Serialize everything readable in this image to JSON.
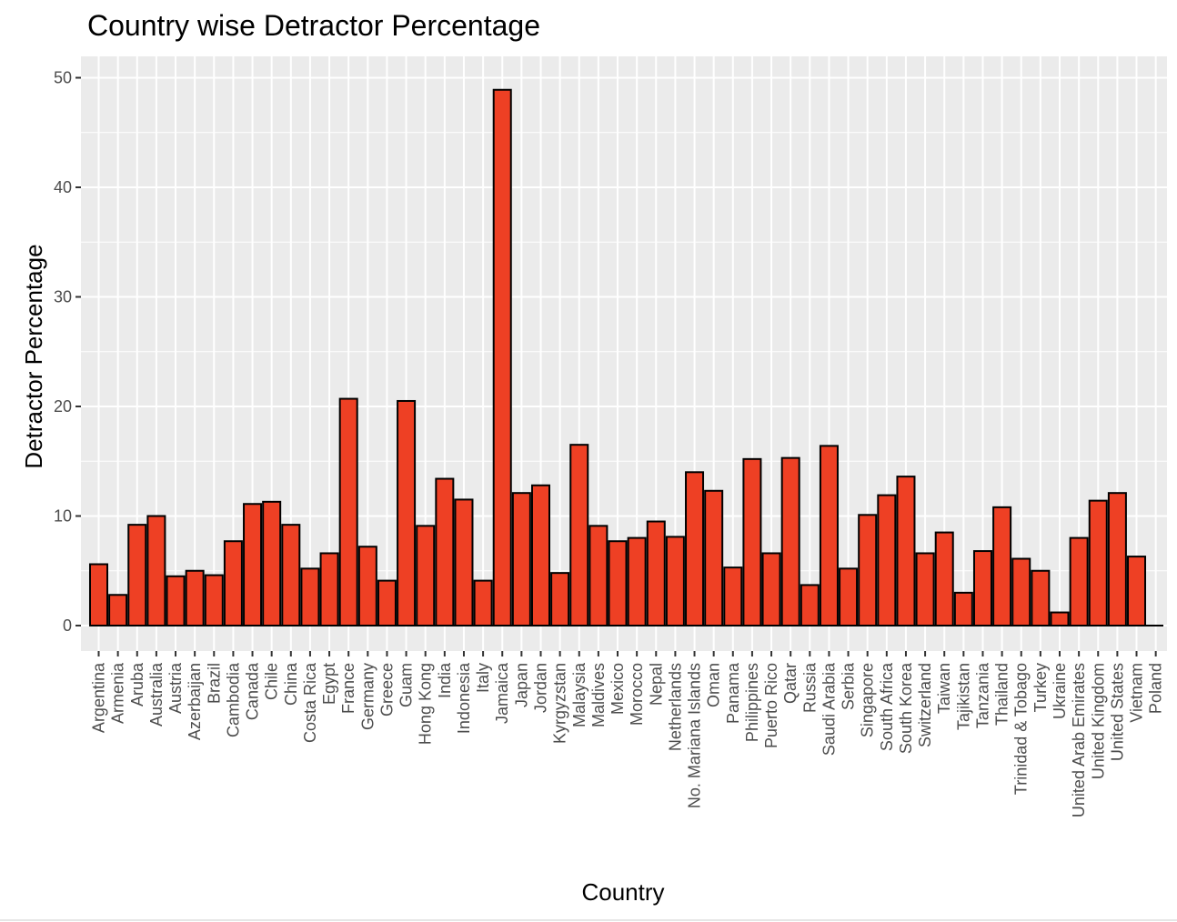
{
  "chart_data": {
    "type": "bar",
    "title": "Country wise Detractor Percentage",
    "xlabel": "Country",
    "ylabel": "Detractor Percentage",
    "ylim": [
      0,
      52
    ],
    "yticks": [
      0,
      10,
      20,
      30,
      40,
      50
    ],
    "grid": true,
    "colors": {
      "bar_fill": "#ee4024",
      "bar_stroke": "#000000",
      "panel": "#ebebeb",
      "grid": "#ffffff"
    },
    "categories": [
      "Argentina",
      "Armenia",
      "Aruba",
      "Australia",
      "Austria",
      "Azerbaijan",
      "Brazil",
      "Cambodia",
      "Canada",
      "Chile",
      "China",
      "Costa Rica",
      "Egypt",
      "France",
      "Germany",
      "Greece",
      "Guam",
      "Hong Kong",
      "India",
      "Indonesia",
      "Italy",
      "Jamaica",
      "Japan",
      "Jordan",
      "Kyrgyzstan",
      "Malaysia",
      "Maldives",
      "Mexico",
      "Morocco",
      "Nepal",
      "Netherlands",
      "No. Mariana Islands",
      "Oman",
      "Panama",
      "Philippines",
      "Puerto Rico",
      "Qatar",
      "Russia",
      "Saudi Arabia",
      "Serbia",
      "Singapore",
      "South Africa",
      "South Korea",
      "Switzerland",
      "Taiwan",
      "Tajikistan",
      "Tanzania",
      "Thailand",
      "Trinidad & Tobago",
      "Turkey",
      "Ukraine",
      "United Arab Emirates",
      "United Kingdom",
      "United States",
      "Vietnam",
      "Poland"
    ],
    "values": [
      5.6,
      2.8,
      9.2,
      10.0,
      4.5,
      5.0,
      4.6,
      7.7,
      11.1,
      11.3,
      9.2,
      5.2,
      6.6,
      20.7,
      7.2,
      4.1,
      20.5,
      9.1,
      13.4,
      11.5,
      4.1,
      48.9,
      12.1,
      12.8,
      4.8,
      16.5,
      9.1,
      7.7,
      8.0,
      9.5,
      8.1,
      14.0,
      12.3,
      5.3,
      15.2,
      6.6,
      15.3,
      3.7,
      16.4,
      5.2,
      10.1,
      11.9,
      13.6,
      6.6,
      8.5,
      3.0,
      6.8,
      10.8,
      6.1,
      5.0,
      1.2,
      8.0,
      11.4,
      12.1,
      6.3,
      null
    ]
  }
}
